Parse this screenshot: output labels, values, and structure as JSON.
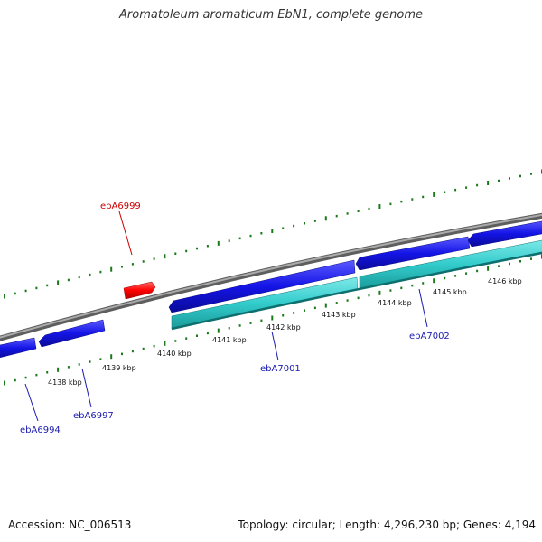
{
  "title": "Aromatoleum aromaticum EbN1, complete genome",
  "footer": {
    "accession": "Accession: NC_006513",
    "summary": "Topology: circular; Length: 4,296,230 bp; Genes: 4,194"
  },
  "ticks": [
    "4138 kbp",
    "4139 kbp",
    "4140 kbp",
    "4141 kbp",
    "4142 kbp",
    "4143 kbp",
    "4144 kbp",
    "4145 kbp",
    "4146 kbp"
  ],
  "gene_labels": [
    {
      "name": "ebA6999",
      "color": "#cc0000"
    },
    {
      "name": "ebA6994",
      "color": "#1a1ab0"
    },
    {
      "name": "ebA6997",
      "color": "#1a1ab0"
    },
    {
      "name": "ebA7001",
      "color": "#1a1ab0"
    },
    {
      "name": "ebA7002",
      "color": "#1a1ab0"
    }
  ],
  "colors": {
    "backbone": "#888888",
    "forward_gene": "#ff0000",
    "reverse_gene": "#1414e6",
    "cds_feature": "#33cccc",
    "tick_marks": "#1a7a1a"
  }
}
